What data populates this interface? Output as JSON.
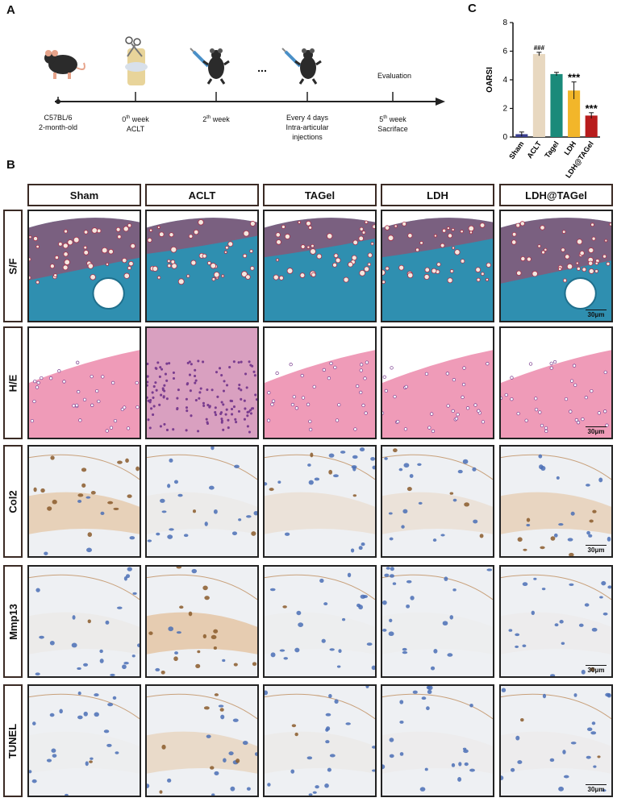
{
  "panel_a": {
    "letter": "A",
    "timeline": [
      {
        "line1": "C57BL/6",
        "line2": "2-month-old",
        "line3": ""
      },
      {
        "line1": "0",
        "sup": "th",
        "line1b": " week",
        "line2": "ACLT",
        "line3": ""
      },
      {
        "line1": "2",
        "sup": "th",
        "line1b": " week",
        "line2": "",
        "line3": ""
      },
      {
        "line1": "Every 4 days",
        "line2": "Intra-articular",
        "line3": "injections"
      },
      {
        "line1": "5",
        "sup": "th",
        "line1b": " week",
        "line2": "Sacriface",
        "line3": ""
      }
    ],
    "evaluation": "Evaluation",
    "ellipsis": "...",
    "icons": [
      "mouse-icon",
      "scissors-knee-icon",
      "syringe-mouse-icon",
      "syringe-mouse-icon"
    ]
  },
  "panel_b": {
    "letter": "B",
    "columns": [
      "Sham",
      "ACLT",
      "TAGel",
      "LDH",
      "LDH@TAGel"
    ],
    "rows": [
      "S/F",
      "H/E",
      "Col2",
      "Mmp13",
      "TUNEL"
    ],
    "scale_label": "30μm",
    "colors": {
      "sf_blue": "#2f8fb0",
      "sf_red": "#b83a5a",
      "he_pink": "#ef9bb8",
      "he_purple": "#7a3d8f",
      "ihc_bg": "#eef0f3",
      "ihc_brown": "#8a5a2a",
      "ihc_blue": "#4a6fb5"
    }
  },
  "chart_data": {
    "type": "bar",
    "panel_letter": "C",
    "categories": [
      "Sham",
      "ACLT",
      "Tagel",
      "LDH",
      "LDH@TAGel"
    ],
    "values": [
      0.2,
      5.8,
      4.4,
      3.25,
      1.5
    ],
    "errors": [
      0.15,
      0.12,
      0.12,
      0.6,
      0.2
    ],
    "colors": [
      "#3a3f8f",
      "#e8d8c0",
      "#1a8a7a",
      "#f2b62a",
      "#b81c1c"
    ],
    "annotations": [
      "",
      "###",
      "",
      "***",
      "***"
    ],
    "ylabel": "OARSI",
    "ylim": [
      0,
      8
    ],
    "yticks": [
      0,
      2,
      4,
      6,
      8
    ]
  }
}
